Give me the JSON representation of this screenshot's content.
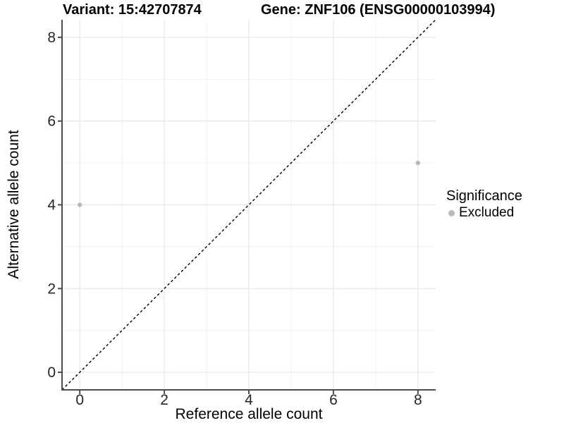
{
  "chart_data": {
    "type": "scatter",
    "title_left": "Variant: 15:42707874",
    "title_right": "Gene: ZNF106 (ENSG00000103994)",
    "xlabel": "Reference allele count",
    "ylabel": "Alternative allele count",
    "xlim": [
      -0.42,
      8.42
    ],
    "ylim": [
      -0.42,
      8.42
    ],
    "x_major_ticks": [
      0,
      2,
      4,
      6,
      8
    ],
    "x_minor_ticks": [
      1,
      3,
      5,
      7
    ],
    "y_major_ticks": [
      0,
      2,
      4,
      6,
      8
    ],
    "y_minor_ticks": [
      1,
      3,
      5,
      7
    ],
    "grid": "major+minor",
    "identity_line": {
      "style": "dashed",
      "x1": -0.42,
      "y1": -0.42,
      "x2": 8.42,
      "y2": 8.42,
      "color": "#000000"
    },
    "series": [
      {
        "name": "Excluded",
        "color": "#b9b9b9",
        "points": [
          [
            0,
            4
          ],
          [
            8,
            5
          ]
        ]
      }
    ],
    "legend": {
      "title": "Significance",
      "position": "right",
      "items": [
        {
          "label": "Excluded",
          "color": "#b9b9b9"
        }
      ]
    },
    "colors": {
      "background": "#ffffff",
      "grid_major": "#e7e7e7",
      "grid_minor": "#f3f3f3",
      "axis": "#4d4d4d",
      "tick_label": "#262626",
      "text": "#000000"
    }
  }
}
